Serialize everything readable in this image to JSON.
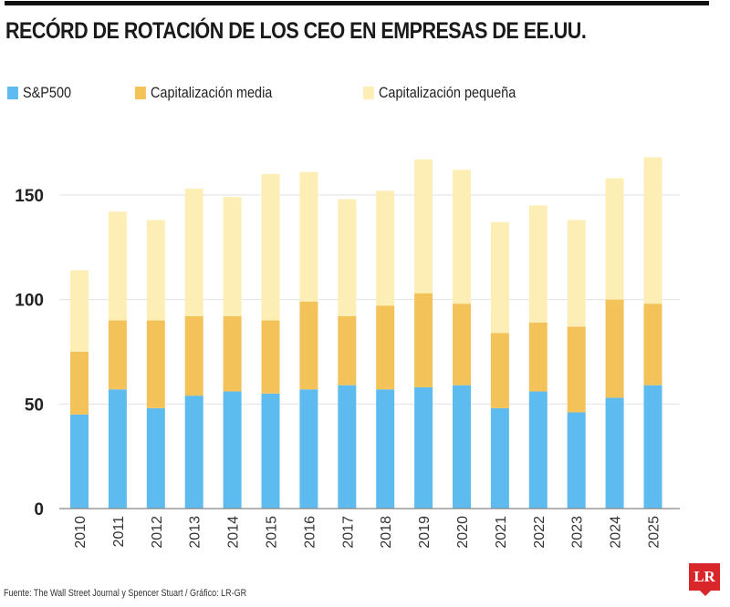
{
  "chart_data": {
    "type": "bar",
    "stacked": true,
    "title": "RECÓRD DE ROTACIÓN DE LOS CEO EN EMPRESAS DE EE.UU.",
    "categories": [
      "2010",
      "2011",
      "2012",
      "2013",
      "2014",
      "2015",
      "2016",
      "2017",
      "2018",
      "2019",
      "2020",
      "2021",
      "2022",
      "2023",
      "2024",
      "2025"
    ],
    "series": [
      {
        "name": "S&P500",
        "color": "#5ebbf0",
        "values": [
          45,
          57,
          48,
          54,
          56,
          55,
          57,
          59,
          57,
          58,
          59,
          48,
          56,
          46,
          53,
          59
        ]
      },
      {
        "name": "Capitalización media",
        "color": "#f3c35a",
        "values": [
          30,
          33,
          42,
          38,
          36,
          35,
          42,
          33,
          40,
          45,
          39,
          36,
          33,
          41,
          47,
          39
        ]
      },
      {
        "name": "Capitalización pequeña",
        "color": "#fdeeb5",
        "values": [
          39,
          52,
          48,
          61,
          57,
          70,
          62,
          56,
          55,
          64,
          64,
          53,
          56,
          51,
          58,
          70
        ]
      }
    ],
    "yticks": [
      "0",
      "50",
      "100",
      "150"
    ],
    "ylim": [
      0,
      175
    ],
    "xlabel": "",
    "ylabel": "",
    "grid": true,
    "legend_position": "top"
  },
  "footer": "Fuente: The Wall Street Journal y Spencer Stuart / Gráfico: LR-GR",
  "logo": "LR"
}
